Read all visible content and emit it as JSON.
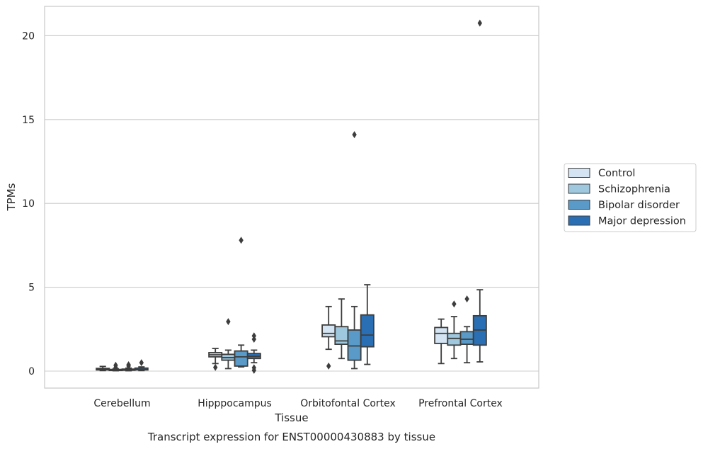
{
  "chart_data": {
    "type": "boxplot",
    "title": "Transcript expression for ENST00000430883 by tissue",
    "xlabel": "Tissue",
    "ylabel": "TPMs",
    "ylim": [
      -1,
      21.8
    ],
    "yticks": [
      0,
      5,
      10,
      15,
      20
    ],
    "grid": "horizontal",
    "legend_position": "right",
    "categories": [
      "Cerebellum",
      "Hipppocampus",
      "Orbitofontal Cortex",
      "Prefrontal Cortex"
    ],
    "series": [
      {
        "name": "Control",
        "color": "#d4e4f2",
        "boxes": [
          {
            "whislo": 0.03,
            "q1": 0.07,
            "med": 0.1,
            "q3": 0.16,
            "whishi": 0.28,
            "fliers": []
          },
          {
            "whislo": 0.45,
            "q1": 0.85,
            "med": 0.97,
            "q3": 1.1,
            "whishi": 1.35,
            "fliers": [
              0.22
            ]
          },
          {
            "whislo": 1.3,
            "q1": 2.05,
            "med": 2.25,
            "q3": 2.75,
            "whishi": 3.85,
            "fliers": [
              0.3
            ]
          },
          {
            "whislo": 0.45,
            "q1": 1.65,
            "med": 2.25,
            "q3": 2.6,
            "whishi": 3.1,
            "fliers": []
          }
        ]
      },
      {
        "name": "Schizophrenia",
        "color": "#9fc8df",
        "boxes": [
          {
            "whislo": 0.02,
            "q1": 0.04,
            "med": 0.07,
            "q3": 0.1,
            "whishi": 0.14,
            "fliers": [
              0.22,
              0.35
            ]
          },
          {
            "whislo": 0.15,
            "q1": 0.65,
            "med": 0.8,
            "q3": 1.0,
            "whishi": 1.25,
            "fliers": [
              2.95
            ]
          },
          {
            "whislo": 0.75,
            "q1": 1.6,
            "med": 1.8,
            "q3": 2.65,
            "whishi": 4.3,
            "fliers": []
          },
          {
            "whislo": 0.75,
            "q1": 1.55,
            "med": 1.95,
            "q3": 2.25,
            "whishi": 3.25,
            "fliers": [
              4.0
            ]
          }
        ]
      },
      {
        "name": "Bipolar disorder",
        "color": "#5a9ac8",
        "boxes": [
          {
            "whislo": 0.02,
            "q1": 0.05,
            "med": 0.08,
            "q3": 0.12,
            "whishi": 0.18,
            "fliers": [
              0.3,
              0.38
            ]
          },
          {
            "whislo": 0.25,
            "q1": 0.3,
            "med": 0.85,
            "q3": 1.2,
            "whishi": 1.55,
            "fliers": [
              7.8
            ]
          },
          {
            "whislo": 0.15,
            "q1": 0.65,
            "med": 1.5,
            "q3": 2.45,
            "whishi": 3.85,
            "fliers": [
              14.1
            ]
          },
          {
            "whislo": 0.5,
            "q1": 1.6,
            "med": 1.9,
            "q3": 2.35,
            "whishi": 2.65,
            "fliers": [
              4.3
            ]
          }
        ]
      },
      {
        "name": "Major depression",
        "color": "#2a6fb4",
        "boxes": [
          {
            "whislo": 0.03,
            "q1": 0.07,
            "med": 0.1,
            "q3": 0.18,
            "whishi": 0.25,
            "fliers": [
              0.5
            ]
          },
          {
            "whislo": 0.5,
            "q1": 0.75,
            "med": 0.88,
            "q3": 1.05,
            "whishi": 1.25,
            "fliers": [
              1.9,
              2.1,
              0.2,
              0.05
            ]
          },
          {
            "whislo": 0.4,
            "q1": 1.45,
            "med": 2.15,
            "q3": 3.35,
            "whishi": 5.15,
            "fliers": []
          },
          {
            "whislo": 0.55,
            "q1": 1.55,
            "med": 2.45,
            "q3": 3.3,
            "whishi": 4.85,
            "fliers": [
              20.75
            ]
          }
        ]
      }
    ]
  },
  "legend": {
    "entries": [
      "Control",
      "Schizophrenia",
      "Bipolar disorder",
      "Major depression"
    ]
  },
  "caption": "Transcript expression for ENST00000430883 by tissue"
}
